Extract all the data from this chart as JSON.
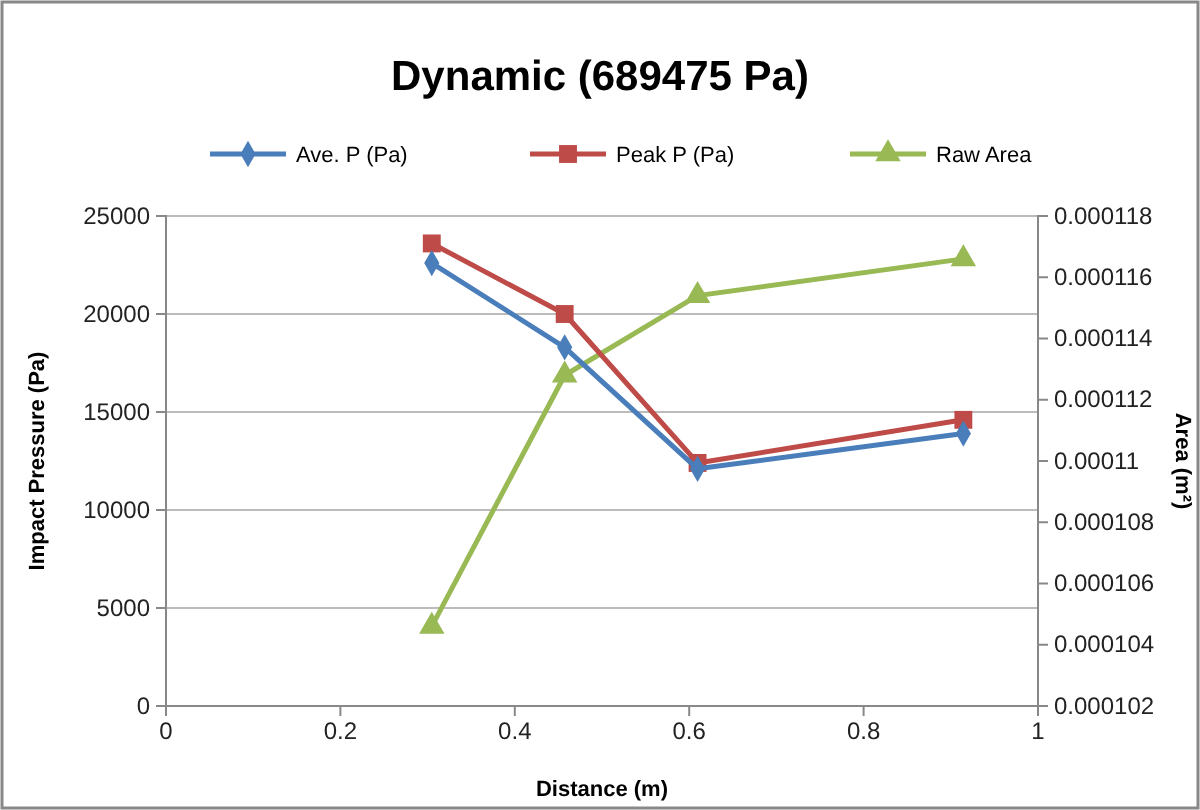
{
  "chart_data": {
    "type": "line",
    "title": "Dynamic (689475 Pa)",
    "xlabel": "Distance (m)",
    "ylabel": "Impact Pressure (Pa)",
    "y2label": "Area (m²)",
    "xlim": [
      0,
      1
    ],
    "xticks": [
      0,
      0.2,
      0.4,
      0.6,
      0.8,
      1
    ],
    "ylim": [
      0,
      25000
    ],
    "yticks": [
      0,
      5000,
      10000,
      15000,
      20000,
      25000
    ],
    "y2lim": [
      0.000102,
      0.000118
    ],
    "y2ticks": [
      0.000102,
      0.000104,
      0.000106,
      0.000108,
      0.00011,
      0.000112,
      0.000114,
      0.000116,
      0.000118
    ],
    "grid": "y",
    "legend": "top",
    "line_style": "solid",
    "series": [
      {
        "name": "Ave. P (Pa)",
        "color": "#4a7ebb",
        "marker": "diamond",
        "x": [
          0.3048,
          0.4572,
          0.6096,
          0.9144
        ],
        "values": [
          22600,
          18300,
          12100,
          13900
        ]
      },
      {
        "name": "Peak P (Pa)",
        "color": "#be4b48",
        "marker": "square",
        "x": [
          0.3048,
          0.4572,
          0.6096,
          0.9144
        ],
        "values": [
          23600,
          20000,
          12400,
          14600
        ]
      },
      {
        "name": "Raw Area",
        "color": "#98b954",
        "marker": "triangle",
        "axis": "y2",
        "x": [
          0.3048,
          0.4572,
          0.6096,
          0.9144
        ],
        "values": [
          0.0001046,
          0.0001128,
          0.0001154,
          0.0001166
        ]
      }
    ]
  }
}
